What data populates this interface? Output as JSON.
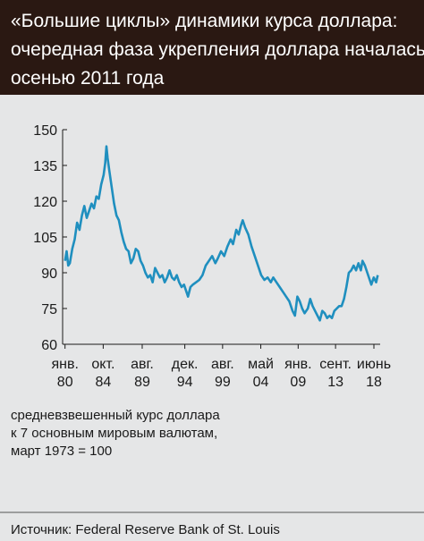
{
  "chart_data": {
    "type": "line",
    "title": [
      "«Большие циклы» динамики курса доллара:",
      "очередная фаза укрепления доллара началась",
      "осенью 2011 года"
    ],
    "note": [
      "средневзвешенный курс доллара",
      "к 7 основным мировым валютам,",
      "март 1973 = 100"
    ],
    "source": "Источник: Federal Reserve Bank of St. Louis",
    "color": "#1f8fbf",
    "x": [
      1980.0,
      1980.2,
      1980.4,
      1980.6,
      1980.9,
      1981.2,
      1981.5,
      1981.8,
      1982.1,
      1982.4,
      1982.7,
      1983.0,
      1983.3,
      1983.6,
      1983.9,
      1984.2,
      1984.5,
      1984.8,
      1985.0,
      1985.15,
      1985.3,
      1985.5,
      1985.8,
      1986.1,
      1986.4,
      1986.7,
      1987.0,
      1987.3,
      1987.6,
      1987.9,
      1988.2,
      1988.5,
      1988.8,
      1989.1,
      1989.4,
      1989.7,
      1990.0,
      1990.3,
      1990.6,
      1990.9,
      1991.2,
      1991.5,
      1991.8,
      1992.1,
      1992.4,
      1992.7,
      1993.0,
      1993.3,
      1993.6,
      1993.9,
      1994.2,
      1994.5,
      1994.8,
      1995.1,
      1995.3,
      1995.6,
      1995.9,
      1996.3,
      1996.7,
      1997.1,
      1997.5,
      1997.9,
      1998.3,
      1998.7,
      1999.0,
      1999.4,
      1999.8,
      2000.2,
      2000.6,
      2000.9,
      2001.3,
      2001.6,
      2001.9,
      2002.1,
      2002.4,
      2002.8,
      2003.2,
      2003.6,
      2004.0,
      2004.4,
      2004.8,
      2005.2,
      2005.6,
      2005.9,
      2006.3,
      2006.7,
      2007.1,
      2007.5,
      2007.9,
      2008.3,
      2008.6,
      2008.9,
      2009.2,
      2009.5,
      2009.8,
      2010.2,
      2010.5,
      2010.8,
      2011.1,
      2011.4,
      2011.7,
      2012.0,
      2012.3,
      2012.6,
      2012.9,
      2013.2,
      2013.5,
      2013.8,
      2014.1,
      2014.4,
      2014.7,
      2015.0,
      2015.3,
      2015.6,
      2015.9,
      2016.2,
      2016.5,
      2016.8,
      2017.0,
      2017.3,
      2017.6,
      2017.9,
      2018.1,
      2018.4,
      2018.7,
      2018.9
    ],
    "values": [
      95,
      99,
      93,
      94,
      100,
      104,
      111,
      108,
      114,
      118,
      113,
      116,
      119,
      117,
      122,
      121,
      127,
      131,
      136,
      143,
      138,
      133,
      126,
      119,
      114,
      112,
      107,
      103,
      100,
      99,
      94,
      96,
      100,
      99,
      95,
      93,
      90,
      88,
      89,
      86,
      92,
      90,
      88,
      89,
      86,
      88,
      91,
      88,
      87,
      89,
      86,
      84,
      85,
      82,
      80,
      84,
      85,
      86,
      87,
      89,
      93,
      95,
      97,
      94,
      96,
      99,
      97,
      101,
      104,
      102,
      108,
      106,
      110,
      112,
      109,
      106,
      101,
      97,
      93,
      89,
      87,
      88,
      86,
      88,
      86,
      84,
      82,
      80,
      78,
      74,
      72,
      80,
      78,
      75,
      73,
      75,
      79,
      76,
      74,
      72,
      70,
      74,
      73,
      71,
      72,
      71,
      74,
      75,
      76,
      76,
      79,
      84,
      90,
      91,
      93,
      91,
      94,
      91,
      95,
      93,
      90,
      87,
      85,
      88,
      86,
      89
    ],
    "xlim": [
      1979.7,
      2019.2
    ],
    "ylim": [
      60,
      150
    ],
    "yticks": [
      60,
      75,
      90,
      105,
      120,
      135,
      150
    ],
    "xticks": [
      {
        "value": 1980.0,
        "label": "янв. 80"
      },
      {
        "value": 1984.75,
        "label": "окт. 84"
      },
      {
        "value": 1989.6,
        "label": "авг. 89"
      },
      {
        "value": 1994.9,
        "label": "дек. 94"
      },
      {
        "value": 1999.6,
        "label": "авг. 99"
      },
      {
        "value": 2004.35,
        "label": "май 04"
      },
      {
        "value": 2009.0,
        "label": "янв. 09"
      },
      {
        "value": 2013.65,
        "label": "сент. 13"
      },
      {
        "value": 2018.42,
        "label": "июнь 18"
      }
    ]
  }
}
